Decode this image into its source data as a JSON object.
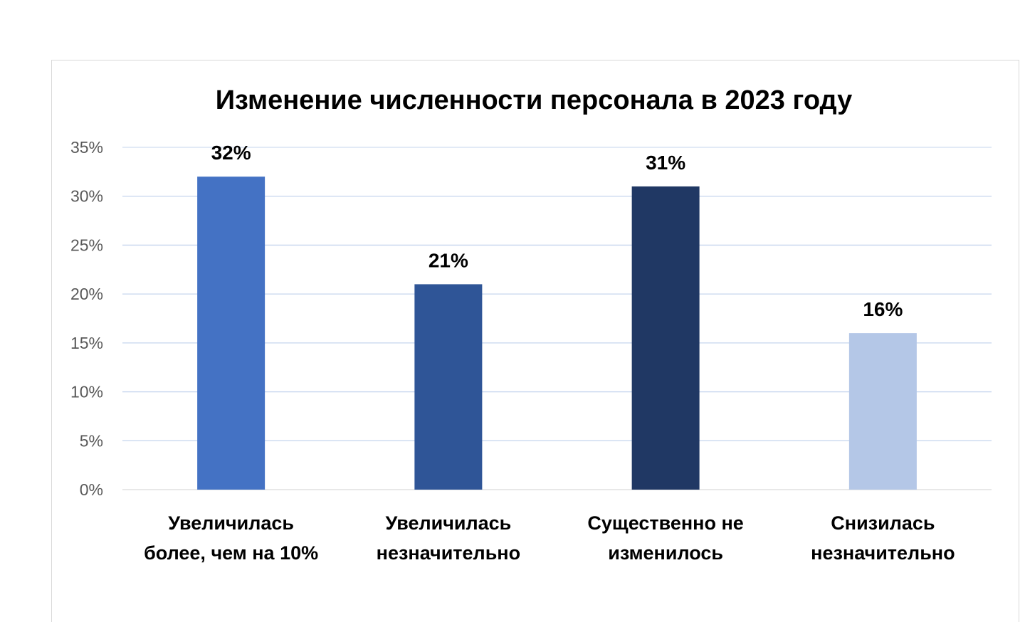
{
  "chart_data": {
    "type": "bar",
    "title": "Изменение численности персонала в 2023 году",
    "categories": [
      [
        "Увеличилась",
        "более, чем на 10%"
      ],
      [
        "Увеличилась",
        "незначительно"
      ],
      [
        "Существенно не",
        "изменилось"
      ],
      [
        "Снизилась",
        "незначительно"
      ]
    ],
    "values": [
      32,
      21,
      31,
      16
    ],
    "data_labels": [
      "32%",
      "21%",
      "31%",
      "16%"
    ],
    "bar_colors": [
      "#4472c4",
      "#2f5597",
      "#203864",
      "#b4c7e7"
    ],
    "ylim": [
      0,
      35
    ],
    "yticks": [
      {
        "value": 0,
        "label": "0%"
      },
      {
        "value": 5,
        "label": "5%"
      },
      {
        "value": 10,
        "label": "10%"
      },
      {
        "value": 15,
        "label": "15%"
      },
      {
        "value": 20,
        "label": "20%"
      },
      {
        "value": 25,
        "label": "25%"
      },
      {
        "value": 30,
        "label": "30%"
      },
      {
        "value": 35,
        "label": "35%"
      }
    ],
    "grid": true,
    "gridline_color": "#c5d5ee",
    "legend": "none"
  }
}
